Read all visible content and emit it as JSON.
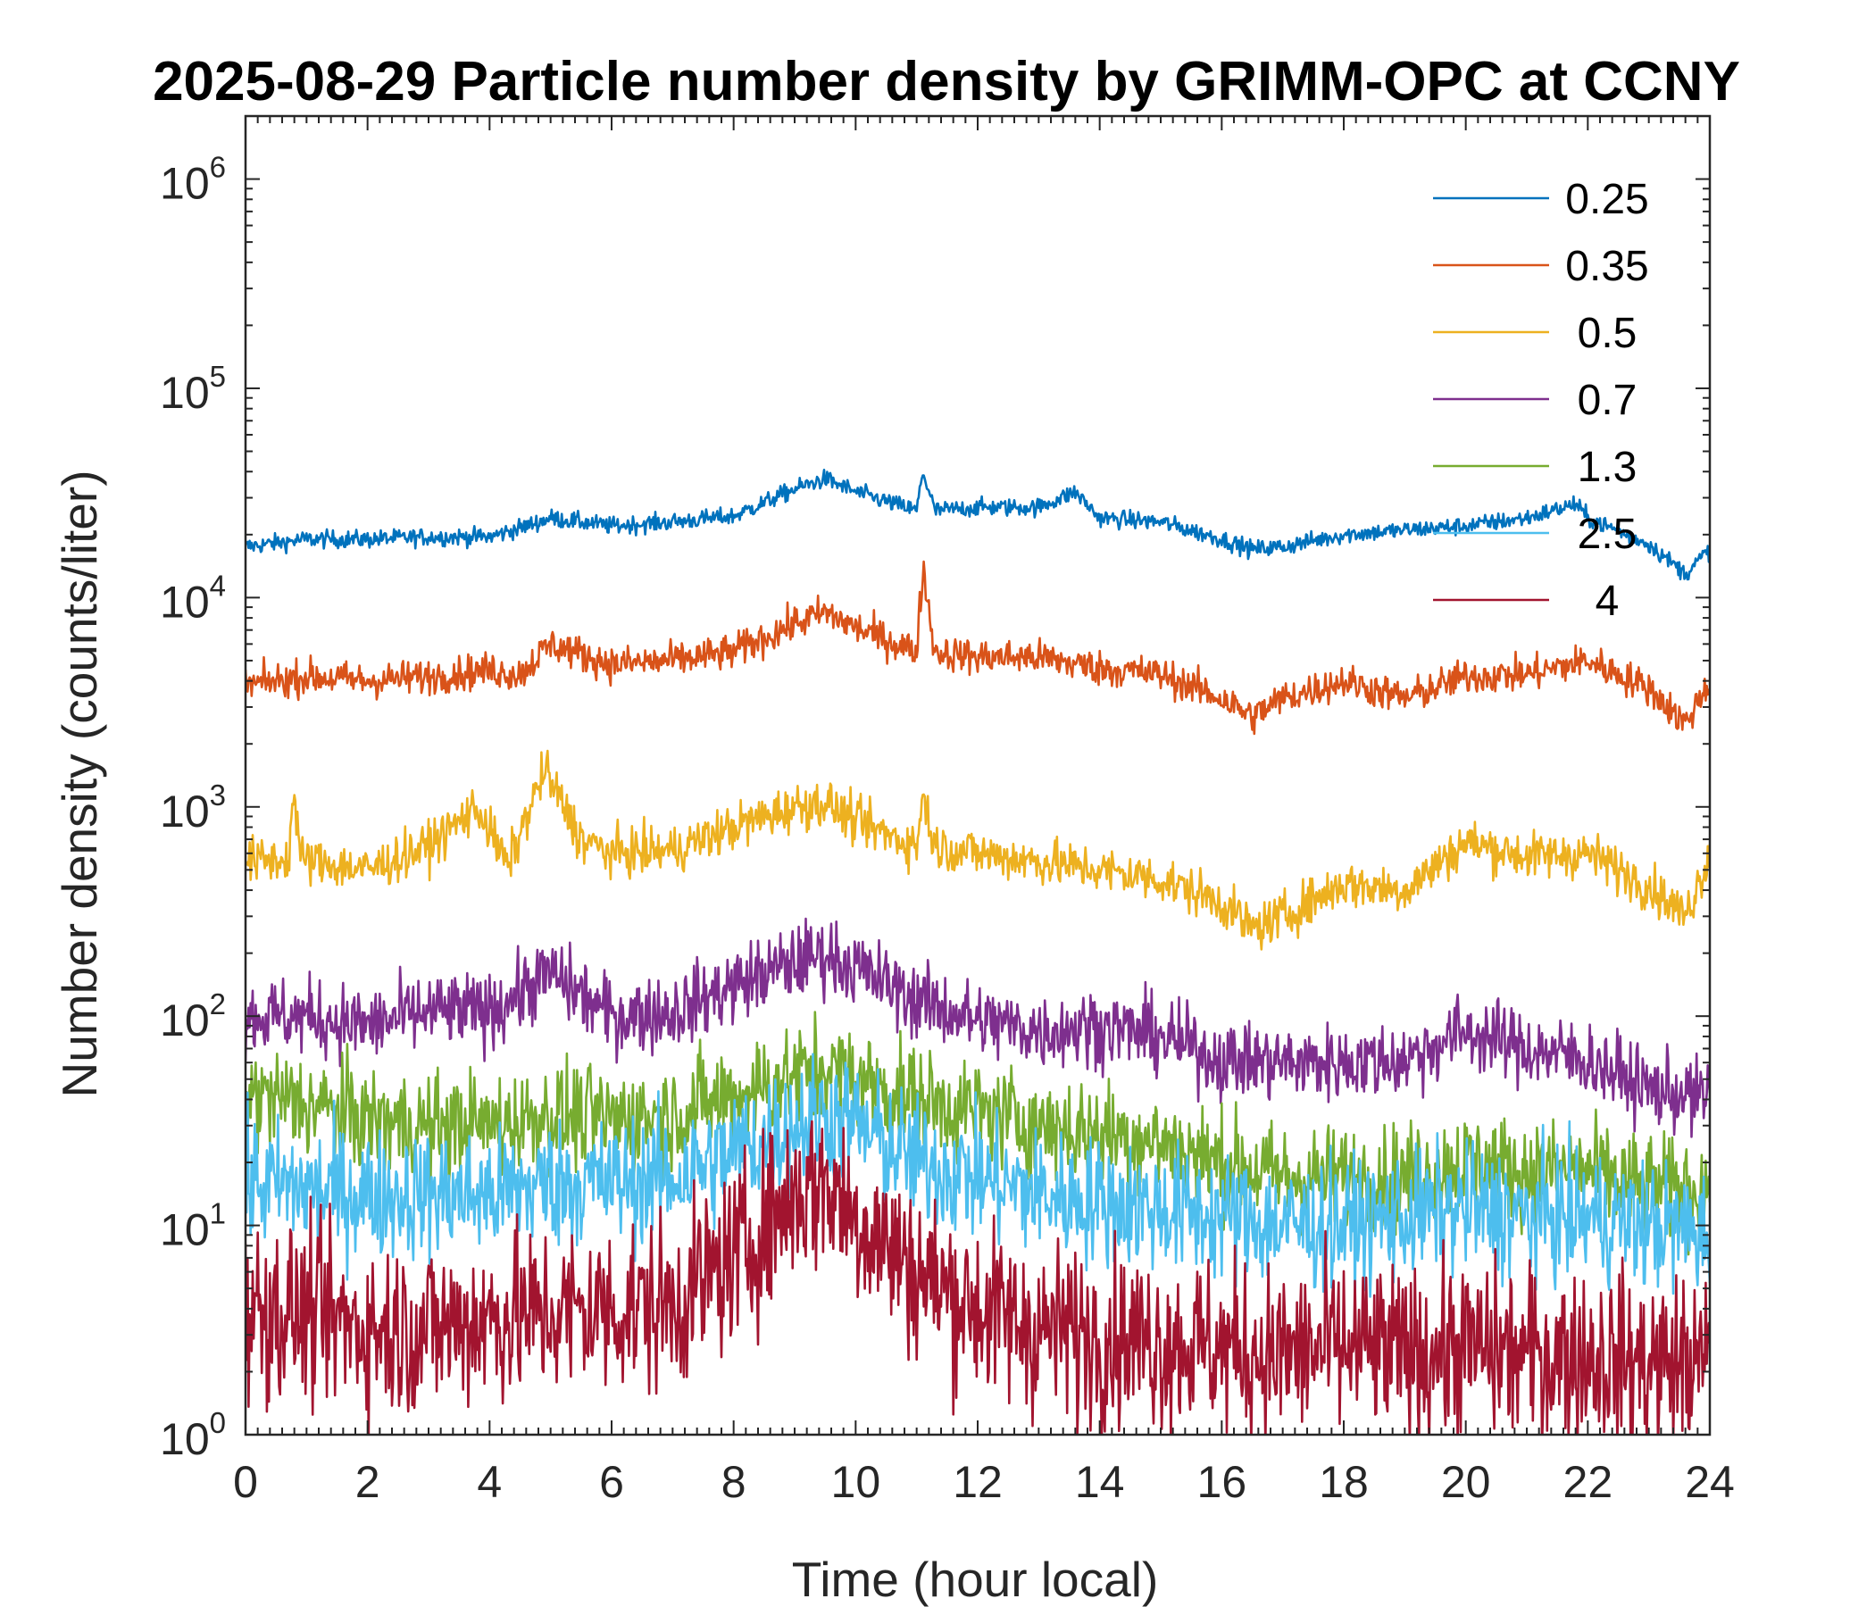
{
  "chart_data": {
    "type": "line",
    "title": "2025-08-29 Particle number density by GRIMM-OPC at CCNY",
    "xlabel": "Time (hour local)",
    "ylabel": "Number density (counts/liter)",
    "xlim": [
      0,
      24
    ],
    "ylim": [
      1,
      2000000
    ],
    "yscale": "log",
    "xticks": [
      "0",
      "2",
      "4",
      "6",
      "8",
      "10",
      "12",
      "14",
      "16",
      "18",
      "20",
      "22",
      "24"
    ],
    "yticks": [
      {
        "base": "10",
        "exp": "0",
        "value": 1
      },
      {
        "base": "10",
        "exp": "1",
        "value": 10
      },
      {
        "base": "10",
        "exp": "2",
        "value": 100
      },
      {
        "base": "10",
        "exp": "3",
        "value": 1000
      },
      {
        "base": "10",
        "exp": "4",
        "value": 10000
      },
      {
        "base": "10",
        "exp": "5",
        "value": 100000
      },
      {
        "base": "10",
        "exp": "6",
        "value": 1000000
      }
    ],
    "legend_position": "top-right",
    "series": [
      {
        "name": "0.25",
        "color": "#0072BD",
        "noise": 0.03,
        "x": [
          0,
          1,
          2,
          3,
          4,
          4.5,
          5,
          6,
          7,
          8,
          9,
          9.5,
          10,
          11,
          11.1,
          11.3,
          12,
          13,
          13.6,
          14,
          15,
          16,
          16.5,
          17,
          18,
          19,
          20,
          21,
          21.8,
          22,
          23,
          23.6,
          24
        ],
        "y": [
          17500,
          19000,
          19000,
          19500,
          19500,
          21500,
          24000,
          22000,
          23000,
          24500,
          33000,
          37000,
          32000,
          26000,
          40000,
          26000,
          27000,
          27000,
          32000,
          24000,
          23000,
          19000,
          17000,
          17500,
          20000,
          21000,
          22000,
          24000,
          28000,
          24000,
          18000,
          13000,
          17000
        ]
      },
      {
        "name": "0.35",
        "color": "#D95319",
        "noise": 0.06,
        "x": [
          0,
          1,
          2,
          3,
          4,
          4.5,
          5,
          6,
          7,
          8,
          9,
          9.5,
          10,
          11,
          11.1,
          11.3,
          12,
          13,
          14,
          15,
          16,
          16.5,
          17,
          18,
          19,
          20,
          21,
          22,
          23,
          23.6,
          24
        ],
        "y": [
          3800,
          4200,
          4000,
          4200,
          4500,
          4300,
          6000,
          4800,
          5000,
          5500,
          7500,
          8500,
          7200,
          5500,
          14000,
          5500,
          5200,
          5200,
          4600,
          4300,
          3300,
          2700,
          3300,
          4000,
          3300,
          4200,
          4300,
          5000,
          3700,
          2500,
          4000
        ]
      },
      {
        "name": "0.5",
        "color": "#EDB120",
        "noise": 0.08,
        "x": [
          0,
          0.7,
          0.8,
          0.9,
          2,
          3,
          3.8,
          4.3,
          4.9,
          5.5,
          6,
          7,
          8,
          9,
          9.5,
          10,
          11,
          11.1,
          11.3,
          12,
          13,
          14,
          15,
          16,
          16.5,
          17,
          18,
          19,
          20,
          21,
          22,
          23,
          23.6,
          24
        ],
        "y": [
          550,
          560,
          1200,
          560,
          500,
          650,
          1000,
          520,
          1500,
          700,
          600,
          620,
          800,
          1000,
          1050,
          850,
          650,
          1150,
          650,
          600,
          550,
          500,
          450,
          350,
          260,
          300,
          430,
          400,
          680,
          580,
          600,
          420,
          300,
          600
        ]
      },
      {
        "name": "0.7",
        "color": "#7E2F8E",
        "noise": 0.13,
        "x": [
          0,
          1,
          2,
          3,
          4,
          5,
          6,
          7,
          8,
          9,
          9.5,
          10,
          11,
          12,
          13,
          14,
          15,
          16,
          17,
          18,
          19,
          20,
          21,
          22,
          23,
          24
        ],
        "y": [
          100,
          100,
          90,
          105,
          105,
          160,
          100,
          105,
          140,
          180,
          200,
          170,
          120,
          95,
          85,
          90,
          80,
          62,
          60,
          60,
          62,
          85,
          70,
          62,
          45,
          40
        ]
      },
      {
        "name": "1.3",
        "color": "#77AC30",
        "noise": 0.18,
        "x": [
          0,
          1,
          2,
          3,
          4,
          5,
          6,
          7,
          8,
          9,
          9.5,
          10,
          11,
          12,
          13,
          14,
          15,
          16,
          17,
          18,
          19,
          20,
          21,
          22,
          23,
          24
        ],
        "y": [
          42,
          38,
          32,
          30,
          30,
          34,
          32,
          34,
          42,
          52,
          56,
          50,
          40,
          35,
          30,
          28,
          25,
          20,
          17,
          17,
          17,
          20,
          18,
          18,
          15,
          15
        ]
      },
      {
        "name": "2.5",
        "color": "#4DBEEE",
        "noise": 0.22,
        "x": [
          0,
          1,
          2,
          3,
          4,
          5,
          6,
          7,
          8,
          9,
          9.5,
          10,
          11,
          12,
          13,
          14,
          15,
          16,
          17,
          18,
          19,
          20,
          21,
          22,
          23,
          24
        ],
        "y": [
          16,
          15,
          14,
          14,
          14,
          16,
          16,
          17,
          22,
          30,
          34,
          30,
          20,
          17,
          14,
          13,
          12,
          11,
          10,
          10,
          11,
          12,
          11,
          11,
          10,
          9
        ]
      },
      {
        "name": "4",
        "color": "#A2142F",
        "noise": 0.3,
        "x": [
          0,
          1,
          2,
          3,
          4,
          5,
          6,
          7,
          8,
          9,
          9.5,
          10,
          11,
          12,
          13,
          14,
          15,
          16,
          17,
          18,
          19,
          20,
          21,
          22,
          23,
          24
        ],
        "y": [
          4,
          3.8,
          3.2,
          3.2,
          3.6,
          3.8,
          4,
          4.2,
          7,
          14,
          16,
          11,
          6,
          4,
          3.2,
          3,
          2.8,
          2.6,
          2.4,
          2.6,
          2.4,
          2.6,
          2.4,
          2.4,
          2.2,
          2.2
        ]
      }
    ]
  }
}
